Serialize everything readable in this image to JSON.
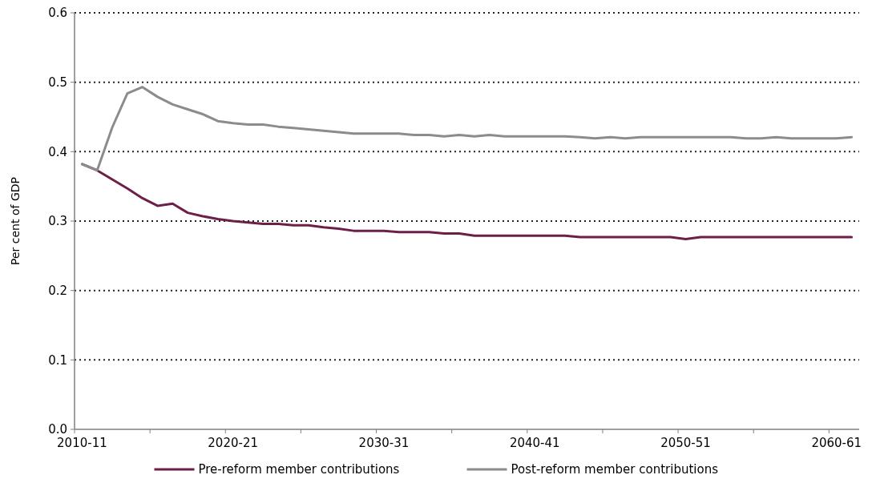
{
  "chart_data": {
    "type": "line",
    "ylabel": "Per cent of GDP",
    "categories": [
      "2010-11",
      null,
      null,
      null,
      null,
      null,
      null,
      null,
      null,
      null,
      "2020-21",
      null,
      null,
      null,
      null,
      null,
      null,
      null,
      null,
      null,
      "2030-31",
      null,
      null,
      null,
      null,
      null,
      null,
      null,
      null,
      null,
      "2040-41",
      null,
      null,
      null,
      null,
      null,
      null,
      null,
      null,
      null,
      "2050-51",
      null,
      null,
      null,
      null,
      null,
      null,
      null,
      null,
      null,
      "2060-61",
      null
    ],
    "series": [
      {
        "name": "Pre-reform member contributions",
        "color": "#6d1f48",
        "values": [
          0.382,
          0.373,
          0.36,
          0.347,
          0.333,
          0.322,
          0.325,
          0.312,
          0.307,
          0.303,
          0.3,
          0.298,
          0.296,
          0.296,
          0.294,
          0.294,
          0.291,
          0.289,
          0.286,
          0.286,
          0.286,
          0.284,
          0.284,
          0.284,
          0.282,
          0.282,
          0.279,
          0.279,
          0.279,
          0.279,
          0.279,
          0.279,
          0.279,
          0.277,
          0.277,
          0.277,
          0.277,
          0.277,
          0.277,
          0.277,
          0.274,
          0.277,
          0.277,
          0.277,
          0.277,
          0.277,
          0.277,
          0.277,
          0.277,
          0.277,
          0.277,
          0.277
        ]
      },
      {
        "name": "Post-reform member contributions",
        "color": "#8c8c8c",
        "values": [
          0.382,
          0.373,
          0.435,
          0.484,
          0.493,
          0.479,
          0.468,
          0.461,
          0.454,
          0.444,
          0.441,
          0.439,
          0.439,
          0.436,
          0.434,
          0.432,
          0.43,
          0.428,
          0.426,
          0.426,
          0.426,
          0.426,
          0.424,
          0.424,
          0.422,
          0.424,
          0.422,
          0.424,
          0.422,
          0.422,
          0.422,
          0.422,
          0.422,
          0.421,
          0.419,
          0.421,
          0.419,
          0.421,
          0.421,
          0.421,
          0.421,
          0.421,
          0.421,
          0.421,
          0.419,
          0.419,
          0.421,
          0.419,
          0.419,
          0.419,
          0.419,
          0.421
        ]
      }
    ],
    "ylim": [
      0,
      0.6
    ],
    "yticks": [
      {
        "value": 0,
        "label": "0.0"
      },
      0.1,
      0.2,
      0.3,
      0.4,
      0.5,
      0.6
    ],
    "grid": "y",
    "legend": "bottom",
    "line_style": "solid"
  }
}
